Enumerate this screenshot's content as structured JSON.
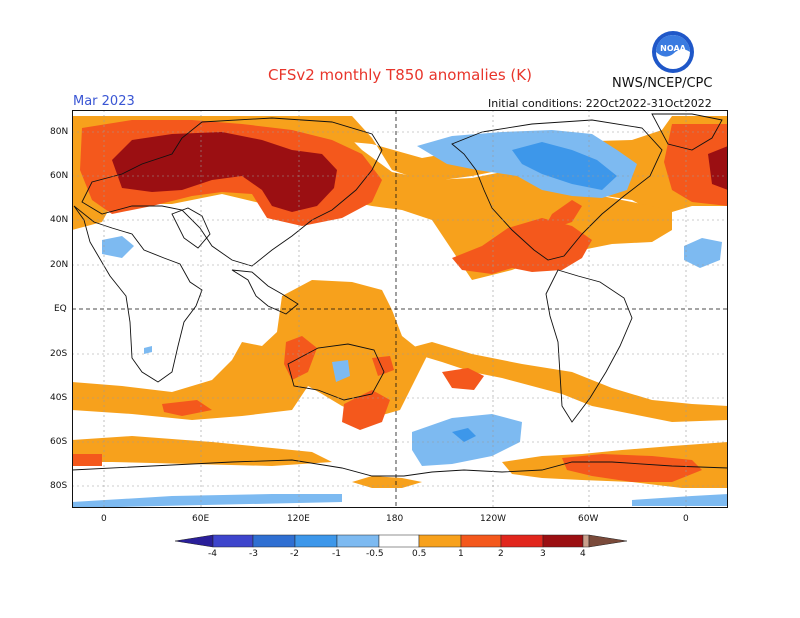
{
  "header": {
    "title": "CFSv2 monthly T850 anomalies (K)",
    "agency": "NWS/NCEP/CPC",
    "valid_month": "Mar 2023",
    "initial_conditions": "Initial conditions: 22Oct2022-31Oct2022"
  },
  "logo": {
    "text": "NOAA",
    "icon": "noaa-logo"
  },
  "map": {
    "lat_labels": [
      "80N",
      "60N",
      "40N",
      "20N",
      "EQ",
      "20S",
      "40S",
      "60S",
      "80S"
    ],
    "lon_labels": [
      "0",
      "60E",
      "120E",
      "180",
      "120W",
      "60W",
      "0"
    ],
    "grid": true
  },
  "colorbar": {
    "labels": [
      "-4",
      "-3",
      "-2",
      "-1",
      "-0.5",
      "0.5",
      "1",
      "2",
      "3",
      "4"
    ],
    "colors": [
      "#2a1f9a",
      "#3e45cc",
      "#2f6fd2",
      "#3d97ea",
      "#7dbaf1",
      "#ffffff",
      "#f7a11c",
      "#f4581c",
      "#e1261c",
      "#9b0f12",
      "#c9a08c",
      "#7a4a3a"
    ]
  }
}
